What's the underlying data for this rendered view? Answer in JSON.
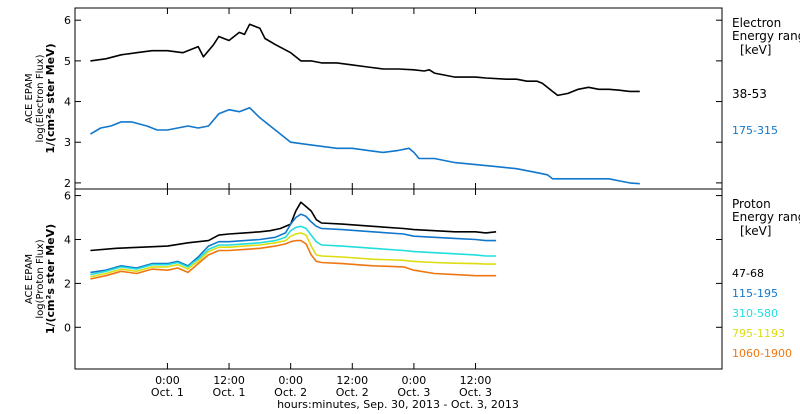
{
  "chart_data": [
    {
      "type": "line",
      "panel": "electron",
      "ylabel_lines": [
        "ACE EPAM",
        "log(Electron Flux)",
        "1/(cm²s ster MeV)"
      ],
      "ylim": [
        1.85,
        6.3
      ],
      "yticks": [
        2,
        3,
        4,
        5,
        6
      ],
      "legend_title": [
        "Electron",
        "Energy range",
        "[keV]"
      ],
      "series": [
        {
          "name": "38-53",
          "color": "#000000",
          "points": [
            [
              -15,
              5.0
            ],
            [
              -12,
              5.05
            ],
            [
              -9,
              5.15
            ],
            [
              -6,
              5.2
            ],
            [
              -3,
              5.25
            ],
            [
              0,
              5.25
            ],
            [
              3,
              5.2
            ],
            [
              6,
              5.35
            ],
            [
              7,
              5.1
            ],
            [
              9,
              5.4
            ],
            [
              10,
              5.6
            ],
            [
              12,
              5.5
            ],
            [
              14,
              5.7
            ],
            [
              15,
              5.65
            ],
            [
              16,
              5.9
            ],
            [
              18,
              5.8
            ],
            [
              19,
              5.55
            ],
            [
              21,
              5.4
            ],
            [
              24,
              5.2
            ],
            [
              26,
              5.0
            ],
            [
              28,
              5.0
            ],
            [
              30,
              4.95
            ],
            [
              33,
              4.95
            ],
            [
              36,
              4.9
            ],
            [
              39,
              4.85
            ],
            [
              42,
              4.8
            ],
            [
              45,
              4.8
            ],
            [
              48,
              4.78
            ],
            [
              50,
              4.75
            ],
            [
              51,
              4.78
            ],
            [
              52,
              4.7
            ],
            [
              54,
              4.65
            ],
            [
              56,
              4.6
            ],
            [
              60,
              4.6
            ],
            [
              62,
              4.58
            ],
            [
              66,
              4.55
            ],
            [
              68,
              4.55
            ],
            [
              70,
              4.5
            ],
            [
              72,
              4.5
            ],
            [
              73,
              4.45
            ],
            [
              75,
              4.25
            ],
            [
              76,
              4.15
            ],
            [
              78,
              4.2
            ],
            [
              80,
              4.3
            ],
            [
              82,
              4.35
            ],
            [
              84,
              4.3
            ],
            [
              86,
              4.3
            ],
            [
              88,
              4.28
            ],
            [
              90,
              4.25
            ],
            [
              92,
              4.25
            ]
          ]
        },
        {
          "name": "175-315",
          "color": "#1177cc",
          "points": [
            [
              -15,
              3.2
            ],
            [
              -13,
              3.35
            ],
            [
              -11,
              3.4
            ],
            [
              -9,
              3.5
            ],
            [
              -7,
              3.5
            ],
            [
              -4,
              3.4
            ],
            [
              -2,
              3.3
            ],
            [
              0,
              3.3
            ],
            [
              2,
              3.35
            ],
            [
              4,
              3.4
            ],
            [
              6,
              3.35
            ],
            [
              8,
              3.4
            ],
            [
              10,
              3.7
            ],
            [
              12,
              3.8
            ],
            [
              14,
              3.75
            ],
            [
              16,
              3.85
            ],
            [
              18,
              3.6
            ],
            [
              21,
              3.3
            ],
            [
              24,
              3.0
            ],
            [
              27,
              2.95
            ],
            [
              30,
              2.9
            ],
            [
              33,
              2.85
            ],
            [
              36,
              2.85
            ],
            [
              39,
              2.8
            ],
            [
              42,
              2.75
            ],
            [
              45,
              2.8
            ],
            [
              47,
              2.85
            ],
            [
              48,
              2.75
            ],
            [
              49,
              2.6
            ],
            [
              52,
              2.6
            ],
            [
              56,
              2.5
            ],
            [
              60,
              2.45
            ],
            [
              64,
              2.4
            ],
            [
              68,
              2.35
            ],
            [
              70,
              2.3
            ],
            [
              72,
              2.25
            ],
            [
              74,
              2.2
            ],
            [
              75,
              2.1
            ],
            [
              78,
              2.1
            ],
            [
              82,
              2.1
            ],
            [
              86,
              2.1
            ],
            [
              88,
              2.05
            ],
            [
              90,
              2.0
            ],
            [
              92,
              1.98
            ]
          ]
        }
      ]
    },
    {
      "type": "line",
      "panel": "proton",
      "ylabel_lines": [
        "ACE EPAM",
        "log(Proton Flux)",
        "1/(cm²s ster MeV)"
      ],
      "xlabel": "hours:minutes, Sep. 30, 2013 - Oct. 3, 2013",
      "xlim": [
        -18,
        108
      ],
      "xticks": [
        {
          "x": 0,
          "time": "0:00",
          "day": "Oct. 1"
        },
        {
          "x": 12,
          "time": "12:00",
          "day": "Oct. 1"
        },
        {
          "x": 24,
          "time": "0:00",
          "day": "Oct. 2"
        },
        {
          "x": 36,
          "time": "12:00",
          "day": "Oct. 2"
        },
        {
          "x": 48,
          "time": "0:00",
          "day": "Oct. 3"
        },
        {
          "x": 60,
          "time": "12:00",
          "day": "Oct. 3"
        }
      ],
      "ylim": [
        -1.9,
        6.3
      ],
      "yticks": [
        0,
        2,
        4,
        6
      ],
      "legend_title": [
        "Proton",
        "Energy range",
        "[keV]"
      ],
      "series": [
        {
          "name": "47-68",
          "color": "#000000",
          "points": [
            [
              -15,
              3.5
            ],
            [
              -10,
              3.6
            ],
            [
              -5,
              3.65
            ],
            [
              0,
              3.7
            ],
            [
              4,
              3.85
            ],
            [
              8,
              3.95
            ],
            [
              10,
              4.2
            ],
            [
              12,
              4.25
            ],
            [
              15,
              4.3
            ],
            [
              18,
              4.35
            ],
            [
              20,
              4.4
            ],
            [
              22,
              4.5
            ],
            [
              24,
              4.7
            ],
            [
              25,
              5.3
            ],
            [
              26,
              5.7
            ],
            [
              27,
              5.5
            ],
            [
              28,
              5.3
            ],
            [
              29,
              4.9
            ],
            [
              30,
              4.75
            ],
            [
              34,
              4.7
            ],
            [
              40,
              4.6
            ],
            [
              46,
              4.5
            ],
            [
              48,
              4.45
            ],
            [
              52,
              4.4
            ],
            [
              56,
              4.35
            ],
            [
              60,
              4.35
            ],
            [
              62,
              4.3
            ],
            [
              64,
              4.35
            ]
          ]
        },
        {
          "name": "115-195",
          "color": "#1177cc",
          "points": [
            [
              -15,
              2.5
            ],
            [
              -12,
              2.6
            ],
            [
              -9,
              2.8
            ],
            [
              -6,
              2.7
            ],
            [
              -3,
              2.9
            ],
            [
              0,
              2.9
            ],
            [
              2,
              3.0
            ],
            [
              4,
              2.8
            ],
            [
              5,
              3.0
            ],
            [
              6,
              3.2
            ],
            [
              8,
              3.7
            ],
            [
              10,
              3.9
            ],
            [
              12,
              3.9
            ],
            [
              15,
              3.95
            ],
            [
              18,
              4.0
            ],
            [
              21,
              4.1
            ],
            [
              23,
              4.3
            ],
            [
              24,
              4.7
            ],
            [
              25,
              5.0
            ],
            [
              26,
              5.15
            ],
            [
              27,
              5.05
            ],
            [
              28,
              4.8
            ],
            [
              29,
              4.6
            ],
            [
              30,
              4.5
            ],
            [
              34,
              4.45
            ],
            [
              40,
              4.35
            ],
            [
              46,
              4.25
            ],
            [
              48,
              4.15
            ],
            [
              52,
              4.1
            ],
            [
              56,
              4.05
            ],
            [
              60,
              4.0
            ],
            [
              62,
              3.95
            ],
            [
              64,
              3.95
            ]
          ]
        },
        {
          "name": "310-580",
          "color": "#22dddd",
          "points": [
            [
              -15,
              2.4
            ],
            [
              -12,
              2.55
            ],
            [
              -9,
              2.75
            ],
            [
              -6,
              2.65
            ],
            [
              -3,
              2.85
            ],
            [
              0,
              2.85
            ],
            [
              2,
              2.95
            ],
            [
              4,
              2.75
            ],
            [
              5,
              2.95
            ],
            [
              6,
              3.1
            ],
            [
              8,
              3.55
            ],
            [
              10,
              3.75
            ],
            [
              12,
              3.75
            ],
            [
              15,
              3.8
            ],
            [
              18,
              3.85
            ],
            [
              21,
              3.95
            ],
            [
              23,
              4.1
            ],
            [
              24,
              4.4
            ],
            [
              25,
              4.55
            ],
            [
              26,
              4.6
            ],
            [
              27,
              4.5
            ],
            [
              28,
              4.2
            ],
            [
              29,
              3.9
            ],
            [
              30,
              3.75
            ],
            [
              34,
              3.7
            ],
            [
              40,
              3.6
            ],
            [
              46,
              3.5
            ],
            [
              48,
              3.45
            ],
            [
              52,
              3.4
            ],
            [
              56,
              3.35
            ],
            [
              60,
              3.3
            ],
            [
              62,
              3.25
            ],
            [
              64,
              3.25
            ]
          ]
        },
        {
          "name": "795-1193",
          "color": "#dddd11",
          "points": [
            [
              -15,
              2.3
            ],
            [
              -12,
              2.45
            ],
            [
              -9,
              2.65
            ],
            [
              -6,
              2.55
            ],
            [
              -3,
              2.75
            ],
            [
              0,
              2.75
            ],
            [
              2,
              2.85
            ],
            [
              4,
              2.65
            ],
            [
              5,
              2.85
            ],
            [
              6,
              3.0
            ],
            [
              8,
              3.45
            ],
            [
              10,
              3.65
            ],
            [
              12,
              3.65
            ],
            [
              15,
              3.7
            ],
            [
              18,
              3.75
            ],
            [
              21,
              3.85
            ],
            [
              23,
              3.95
            ],
            [
              24,
              4.15
            ],
            [
              25,
              4.25
            ],
            [
              26,
              4.3
            ],
            [
              27,
              4.2
            ],
            [
              28,
              3.7
            ],
            [
              29,
              3.3
            ],
            [
              30,
              3.25
            ],
            [
              34,
              3.2
            ],
            [
              40,
              3.1
            ],
            [
              46,
              3.05
            ],
            [
              48,
              3.0
            ],
            [
              52,
              2.95
            ],
            [
              56,
              2.92
            ],
            [
              60,
              2.9
            ],
            [
              62,
              2.88
            ],
            [
              64,
              2.88
            ]
          ]
        },
        {
          "name": "1060-1900",
          "color": "#ee7711",
          "points": [
            [
              -15,
              2.2
            ],
            [
              -12,
              2.35
            ],
            [
              -9,
              2.55
            ],
            [
              -6,
              2.45
            ],
            [
              -3,
              2.65
            ],
            [
              0,
              2.6
            ],
            [
              2,
              2.7
            ],
            [
              4,
              2.5
            ],
            [
              5,
              2.7
            ],
            [
              6,
              2.9
            ],
            [
              8,
              3.3
            ],
            [
              10,
              3.5
            ],
            [
              12,
              3.5
            ],
            [
              15,
              3.55
            ],
            [
              18,
              3.6
            ],
            [
              21,
              3.7
            ],
            [
              23,
              3.8
            ],
            [
              24,
              3.9
            ],
            [
              25,
              3.95
            ],
            [
              26,
              3.95
            ],
            [
              27,
              3.8
            ],
            [
              28,
              3.3
            ],
            [
              29,
              3.0
            ],
            [
              30,
              2.95
            ],
            [
              34,
              2.9
            ],
            [
              40,
              2.8
            ],
            [
              46,
              2.75
            ],
            [
              48,
              2.6
            ],
            [
              52,
              2.45
            ],
            [
              56,
              2.4
            ],
            [
              60,
              2.35
            ],
            [
              62,
              2.35
            ],
            [
              64,
              2.35
            ]
          ]
        }
      ]
    }
  ]
}
